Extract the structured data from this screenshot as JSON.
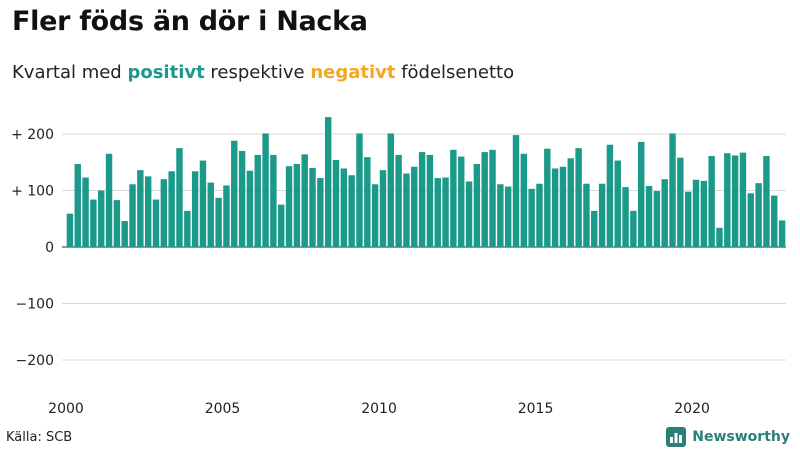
{
  "title": "Fler föds än dör i Nacka",
  "subtitle": {
    "prefix": "Kvartal med ",
    "positive": "positivt",
    "middle": " respektive ",
    "negative": "negativt",
    "suffix": " födelsenetto"
  },
  "colors": {
    "positive": "#1b9a8a",
    "negative": "#f5a623",
    "grid": "#d9d9d9",
    "text": "#222222"
  },
  "source": "Källa: SCB",
  "brand": {
    "name": "Newsworthy",
    "icon": "bar-chart-logo-icon"
  },
  "chart_data": {
    "type": "bar",
    "title": "Fler föds än dör i Nacka",
    "subtitle": "Kvartal med positivt respektive negativt födelsenetto",
    "xlabel": "",
    "ylabel": "",
    "ylim": [
      -230,
      230
    ],
    "yticks": [
      200,
      100,
      0,
      -100,
      -200
    ],
    "ytick_labels": [
      "+ 200",
      "+ 100",
      "0",
      "−100",
      "−200"
    ],
    "x_start": 2000,
    "periods_per_year": 4,
    "xticks": [
      2000,
      2005,
      2010,
      2015,
      2020
    ],
    "grid": true,
    "legend": "none",
    "values": [
      59,
      147,
      123,
      84,
      100,
      165,
      83,
      46,
      111,
      136,
      125,
      84,
      120,
      134,
      175,
      64,
      134,
      153,
      114,
      87,
      109,
      188,
      170,
      135,
      163,
      201,
      163,
      75,
      143,
      147,
      164,
      140,
      122,
      230,
      154,
      139,
      127,
      201,
      159,
      111,
      136,
      201,
      163,
      130,
      142,
      168,
      163,
      122,
      123,
      172,
      160,
      116,
      147,
      168,
      172,
      111,
      107,
      198,
      165,
      103,
      112,
      174,
      139,
      142,
      157,
      175,
      112,
      64,
      112,
      181,
      153,
      106,
      64,
      186,
      108,
      99,
      120,
      201,
      158,
      98,
      119,
      117,
      161,
      34,
      166,
      162,
      167,
      95,
      113,
      161,
      91,
      47
    ]
  }
}
